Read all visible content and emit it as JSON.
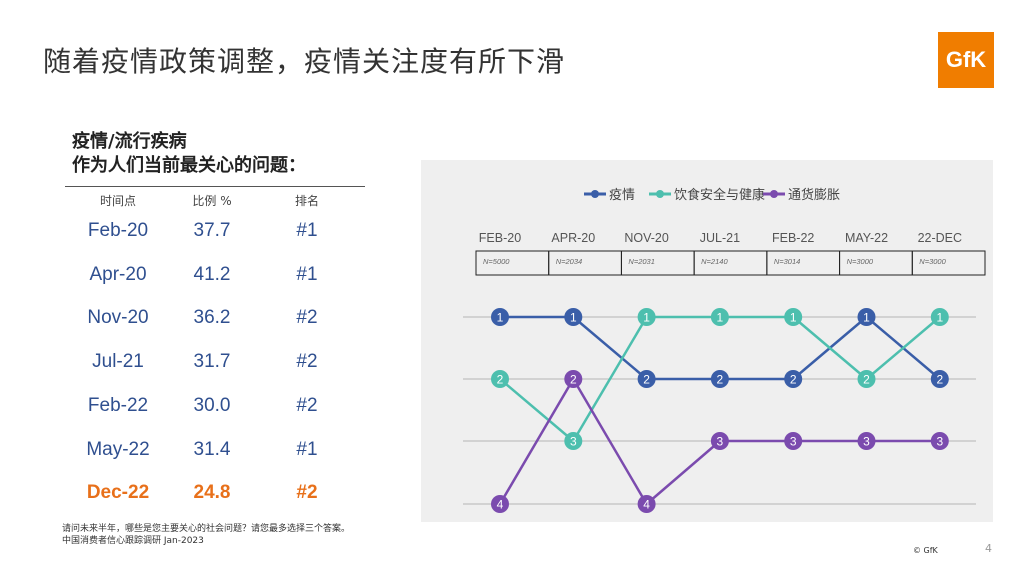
{
  "title": "随着疫情政策调整，疫情关注度有所下滑",
  "logo_text": "GfK",
  "table": {
    "heading_line1": "疫情/流行疾病",
    "heading_line2": "作为人们当前最关心的问题：",
    "columns": [
      "时间点",
      "比例 %",
      "排名"
    ],
    "rows": [
      {
        "period": "Feb-20",
        "pct": "37.7",
        "rank": "#1"
      },
      {
        "period": "Apr-20",
        "pct": "41.2",
        "rank": "#1"
      },
      {
        "period": "Nov-20",
        "pct": "36.2",
        "rank": "#2"
      },
      {
        "period": "Jul-21",
        "pct": "31.7",
        "rank": "#2"
      },
      {
        "period": "Feb-22",
        "pct": "30.0",
        "rank": "#2"
      },
      {
        "period": "May-22",
        "pct": "31.4",
        "rank": "#1"
      },
      {
        "period": "Dec-22",
        "pct": "24.8",
        "rank": "#2",
        "highlight": true
      }
    ]
  },
  "footnote_line1": "请问未来半年，哪些是您主要关心的社会问题？请您最多选择三个答案。",
  "footnote_line2": "中国消费者信心跟踪调研 Jan-2023",
  "copyright": "© GfK",
  "page_number": "4",
  "chart_data": {
    "type": "line",
    "categories": [
      "FEB-20",
      "APR-20",
      "NOV-20",
      "JUL-21",
      "FEB-22",
      "MAY-22",
      "22-DEC"
    ],
    "sample_sizes": [
      "N=5000",
      "N=2034",
      "N=2031",
      "N=2140",
      "N=3014",
      "N=3000",
      "N=3000"
    ],
    "y_meaning": "rank",
    "ylim": [
      1,
      4
    ],
    "inverted_y": true,
    "grid": true,
    "legend_position": "top-center",
    "series": [
      {
        "name": "疫情",
        "color": "#3a5ea8",
        "values": [
          1,
          1,
          2,
          2,
          2,
          1,
          2
        ]
      },
      {
        "name": "饮食安全与健康",
        "color": "#4dbfae",
        "values": [
          2,
          3,
          1,
          1,
          1,
          2,
          1
        ]
      },
      {
        "name": "通货膨胀",
        "color": "#7b4bae",
        "values": [
          4,
          2,
          4,
          3,
          3,
          3,
          3
        ]
      }
    ]
  }
}
